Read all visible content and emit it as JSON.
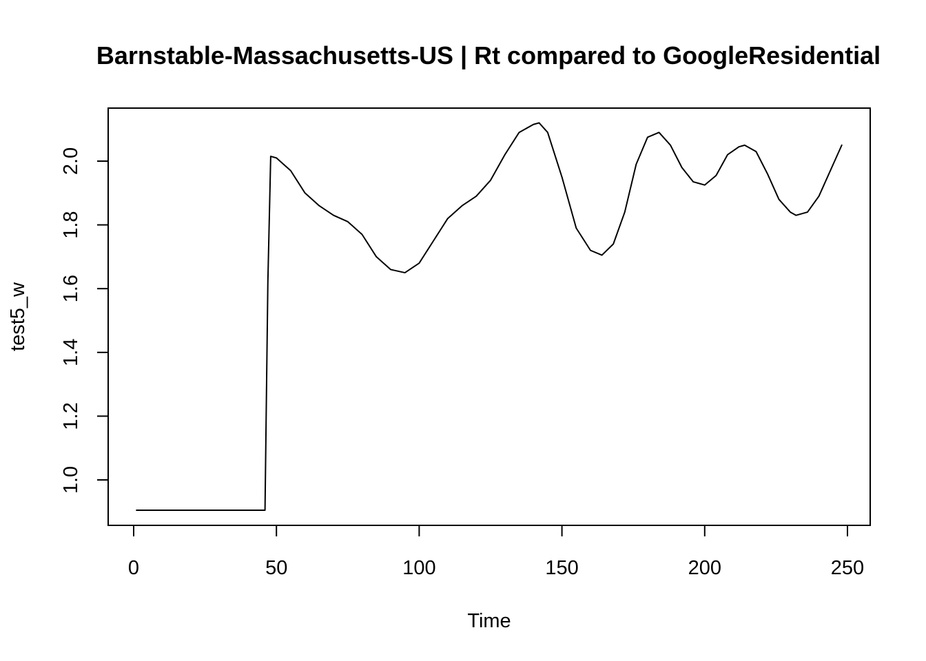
{
  "chart_data": {
    "type": "line",
    "title": "Barnstable-Massachusetts-US | Rt compared to GoogleResidential",
    "xlabel": "Time",
    "ylabel": "test5_w",
    "xlim": [
      1,
      248
    ],
    "ylim": [
      0.91,
      2.12
    ],
    "x_ticks": [
      0,
      50,
      100,
      150,
      200,
      250
    ],
    "x_tick_labels": [
      "0",
      "50",
      "100",
      "150",
      "200",
      "250"
    ],
    "y_ticks": [
      1.0,
      1.2,
      1.4,
      1.6,
      1.8,
      2.0
    ],
    "y_tick_labels": [
      "1.0",
      "1.2",
      "1.4",
      "1.6",
      "1.8",
      "2.0"
    ],
    "grid": false,
    "line_color": "#000000",
    "series": [
      {
        "x": [
          1,
          46,
          47,
          48,
          50,
          55,
          60,
          65,
          70,
          75,
          80,
          85,
          90,
          95,
          100,
          105,
          110,
          115,
          120,
          125,
          130,
          135,
          140,
          142,
          145,
          150,
          155,
          160,
          164,
          168,
          172,
          176,
          180,
          184,
          188,
          192,
          196,
          200,
          204,
          208,
          212,
          214,
          218,
          222,
          226,
          230,
          232,
          236,
          240,
          244,
          248
        ],
        "y": [
          0.905,
          0.905,
          1.62,
          2.015,
          2.01,
          1.97,
          1.9,
          1.86,
          1.83,
          1.81,
          1.77,
          1.7,
          1.66,
          1.65,
          1.68,
          1.75,
          1.82,
          1.86,
          1.89,
          1.94,
          2.02,
          2.09,
          2.115,
          2.12,
          2.09,
          1.95,
          1.79,
          1.72,
          1.705,
          1.74,
          1.84,
          1.99,
          2.075,
          2.09,
          2.05,
          1.98,
          1.935,
          1.925,
          1.955,
          2.02,
          2.045,
          2.05,
          2.03,
          1.96,
          1.88,
          1.84,
          1.83,
          1.84,
          1.89,
          1.97,
          2.05
        ]
      }
    ]
  }
}
